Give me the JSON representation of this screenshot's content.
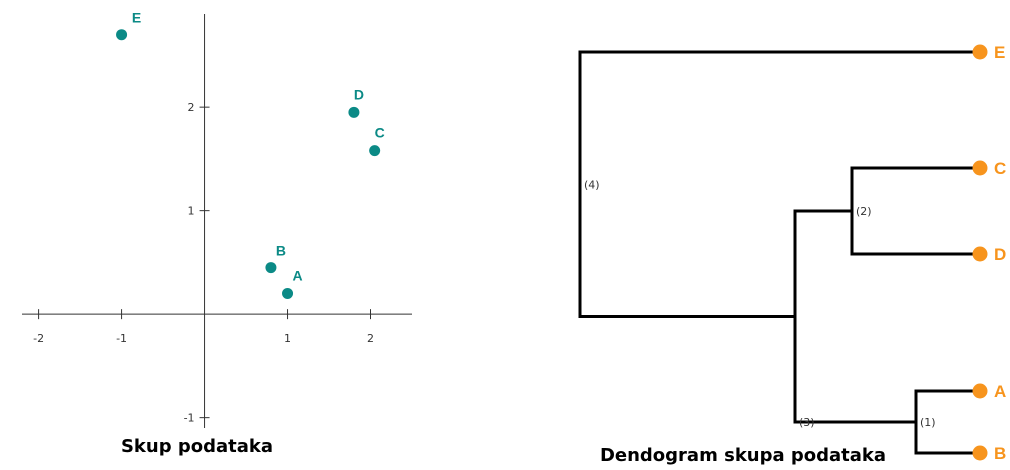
{
  "colors": {
    "scatter_point": "#0b8a86",
    "leaf": "#f7941d",
    "axis": "#333333",
    "branch": "#000000"
  },
  "chart_data": [
    {
      "type": "scatter",
      "title": "Skup podataka",
      "xlim": [
        -2.2,
        2.5
      ],
      "ylim": [
        -1.1,
        2.9
      ],
      "x_ticks": [
        -2,
        -1,
        1,
        2
      ],
      "y_ticks": [
        -1,
        1,
        2
      ],
      "grid": false,
      "points": [
        {
          "label": "A",
          "x": 1.0,
          "y": 0.2
        },
        {
          "label": "B",
          "x": 0.8,
          "y": 0.45
        },
        {
          "label": "C",
          "x": 2.05,
          "y": 1.58
        },
        {
          "label": "D",
          "x": 1.8,
          "y": 1.95
        },
        {
          "label": "E",
          "x": -1.0,
          "y": 2.7
        }
      ]
    },
    {
      "type": "dendrogram",
      "title": "Dendogram skupa podataka",
      "leaves": [
        "E",
        "C",
        "D",
        "A",
        "B"
      ],
      "merges": [
        {
          "label": "(1)",
          "left": "A",
          "right": "B",
          "height": 1
        },
        {
          "label": "(2)",
          "left": "C",
          "right": "D",
          "height": 2
        },
        {
          "label": "(3)",
          "left": "(1)",
          "right": "(2)",
          "height": 3
        },
        {
          "label": "(4)",
          "left": "(3)",
          "right": "E",
          "height": 4
        }
      ]
    }
  ]
}
